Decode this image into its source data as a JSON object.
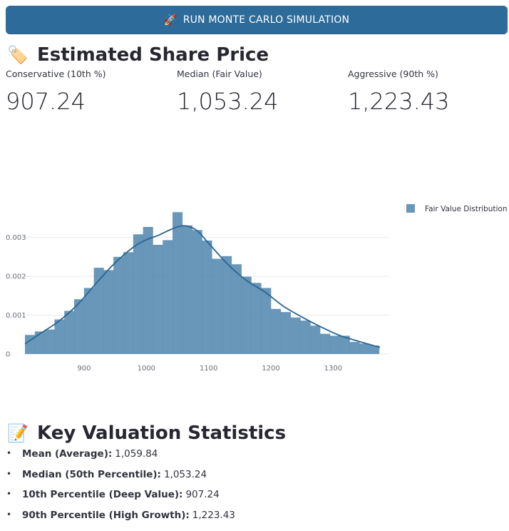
{
  "run_button": {
    "icon": "rocket-icon",
    "emoji": "🚀",
    "label": "RUN MONTE CARLO SIMULATION"
  },
  "price_section": {
    "emoji": "🏷️",
    "title": "Estimated Share Price"
  },
  "metrics": [
    {
      "label": "Conservative (10th %)",
      "value": "907.24"
    },
    {
      "label": "Median (Fair Value)",
      "value": "1,053.24"
    },
    {
      "label": "Aggressive (90th %)",
      "value": "1,223.43"
    }
  ],
  "chart_data": {
    "type": "bar",
    "title": "",
    "legend": [
      "Fair Value Distribution"
    ],
    "legend_placement": "top-right",
    "xlabel": "",
    "ylabel": "",
    "xlim": [
      805,
      1390
    ],
    "ylim": [
      0,
      0.0036
    ],
    "x_ticks": [
      900,
      1000,
      1100,
      1200,
      1300
    ],
    "y_ticks": [
      0,
      0.001,
      0.002,
      0.003
    ],
    "y_tick_labels": [
      "0",
      "0.001",
      "0.002",
      "0.003"
    ],
    "bar_color": "#4d85ad",
    "line_color": "#2a6592",
    "bins": {
      "start": 805,
      "width": 15.8,
      "values": [
        0.00049,
        0.00058,
        0.00063,
        0.00089,
        0.00111,
        0.00141,
        0.0017,
        0.00222,
        0.00216,
        0.0025,
        0.00262,
        0.00308,
        0.00327,
        0.00281,
        0.00293,
        0.00365,
        0.00331,
        0.00319,
        0.00292,
        0.00245,
        0.00252,
        0.00231,
        0.00199,
        0.00183,
        0.0017,
        0.00116,
        0.00108,
        0.00094,
        0.00086,
        0.00073,
        0.00052,
        0.00047,
        0.00047,
        0.00031,
        0.00027,
        0.00022
      ]
    },
    "kde": {
      "x": [
        805,
        830,
        860,
        890,
        920,
        950,
        980,
        1000,
        1020,
        1040,
        1060,
        1080,
        1100,
        1130,
        1160,
        1190,
        1220,
        1250,
        1280,
        1310,
        1340,
        1375
      ],
      "y": [
        0.00026,
        0.00053,
        0.00085,
        0.00128,
        0.00183,
        0.00235,
        0.00276,
        0.00294,
        0.00306,
        0.00321,
        0.0033,
        0.00319,
        0.00285,
        0.00232,
        0.0019,
        0.0016,
        0.00123,
        0.00095,
        0.0007,
        0.00048,
        0.00033,
        0.00017
      ]
    }
  },
  "stats_section": {
    "emoji": "📝",
    "title": "Key Valuation Statistics"
  },
  "stats": [
    {
      "label": "Mean (Average):",
      "value": "1,059.84"
    },
    {
      "label": "Median (50th Percentile):",
      "value": "1,053.24"
    },
    {
      "label": "10th Percentile (Deep Value):",
      "value": "907.24"
    },
    {
      "label": "90th Percentile (High Growth):",
      "value": "1,223.43"
    }
  ]
}
